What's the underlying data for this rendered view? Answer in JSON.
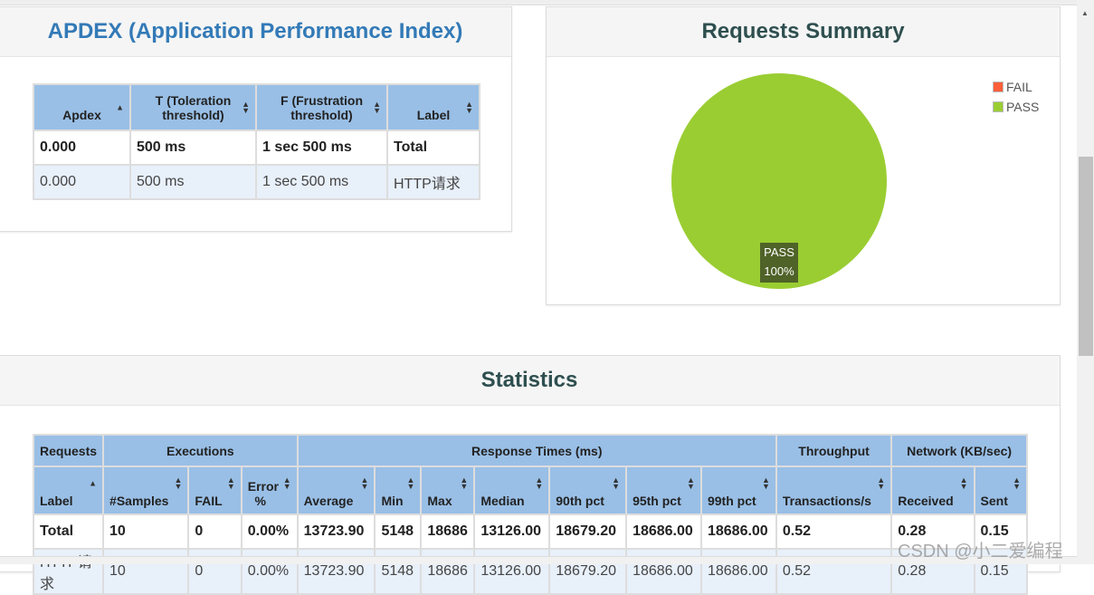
{
  "apdex": {
    "title": "APDEX (Application Performance Index)",
    "headers": [
      "Apdex",
      "T (Toleration threshold)",
      "F (Frustration threshold)",
      "Label"
    ],
    "rows": [
      [
        "0.000",
        "500 ms",
        "1 sec 500 ms",
        "Total"
      ],
      [
        "0.000",
        "500 ms",
        "1 sec 500 ms",
        "HTTP请求"
      ]
    ]
  },
  "summary": {
    "title": "Requests Summary",
    "legend": [
      "FAIL",
      "PASS"
    ],
    "colors": {
      "FAIL": "#ff5e3a",
      "PASS": "#9acd32"
    },
    "slice_label": "PASS",
    "slice_pct": "100%",
    "chart_data": {
      "type": "pie",
      "categories": [
        "FAIL",
        "PASS"
      ],
      "values": [
        0,
        100
      ]
    }
  },
  "stats": {
    "title": "Statistics",
    "groups": [
      "Requests",
      "Executions",
      "Response Times (ms)",
      "Throughput",
      "Network (KB/sec)"
    ],
    "headers": [
      "Label",
      "#Samples",
      "FAIL",
      "Error %",
      "Average",
      "Min",
      "Max",
      "Median",
      "90th pct",
      "95th pct",
      "99th pct",
      "Transactions/s",
      "Received",
      "Sent"
    ],
    "rows": [
      [
        "Total",
        "10",
        "0",
        "0.00%",
        "13723.90",
        "5148",
        "18686",
        "13126.00",
        "18679.20",
        "18686.00",
        "18686.00",
        "0.52",
        "0.28",
        "0.15"
      ],
      [
        "HTTP请求",
        "10",
        "0",
        "0.00%",
        "13723.90",
        "5148",
        "18686",
        "13126.00",
        "18679.20",
        "18686.00",
        "18686.00",
        "0.52",
        "0.28",
        "0.15"
      ]
    ]
  },
  "watermark": "CSDN @小二爱编程"
}
